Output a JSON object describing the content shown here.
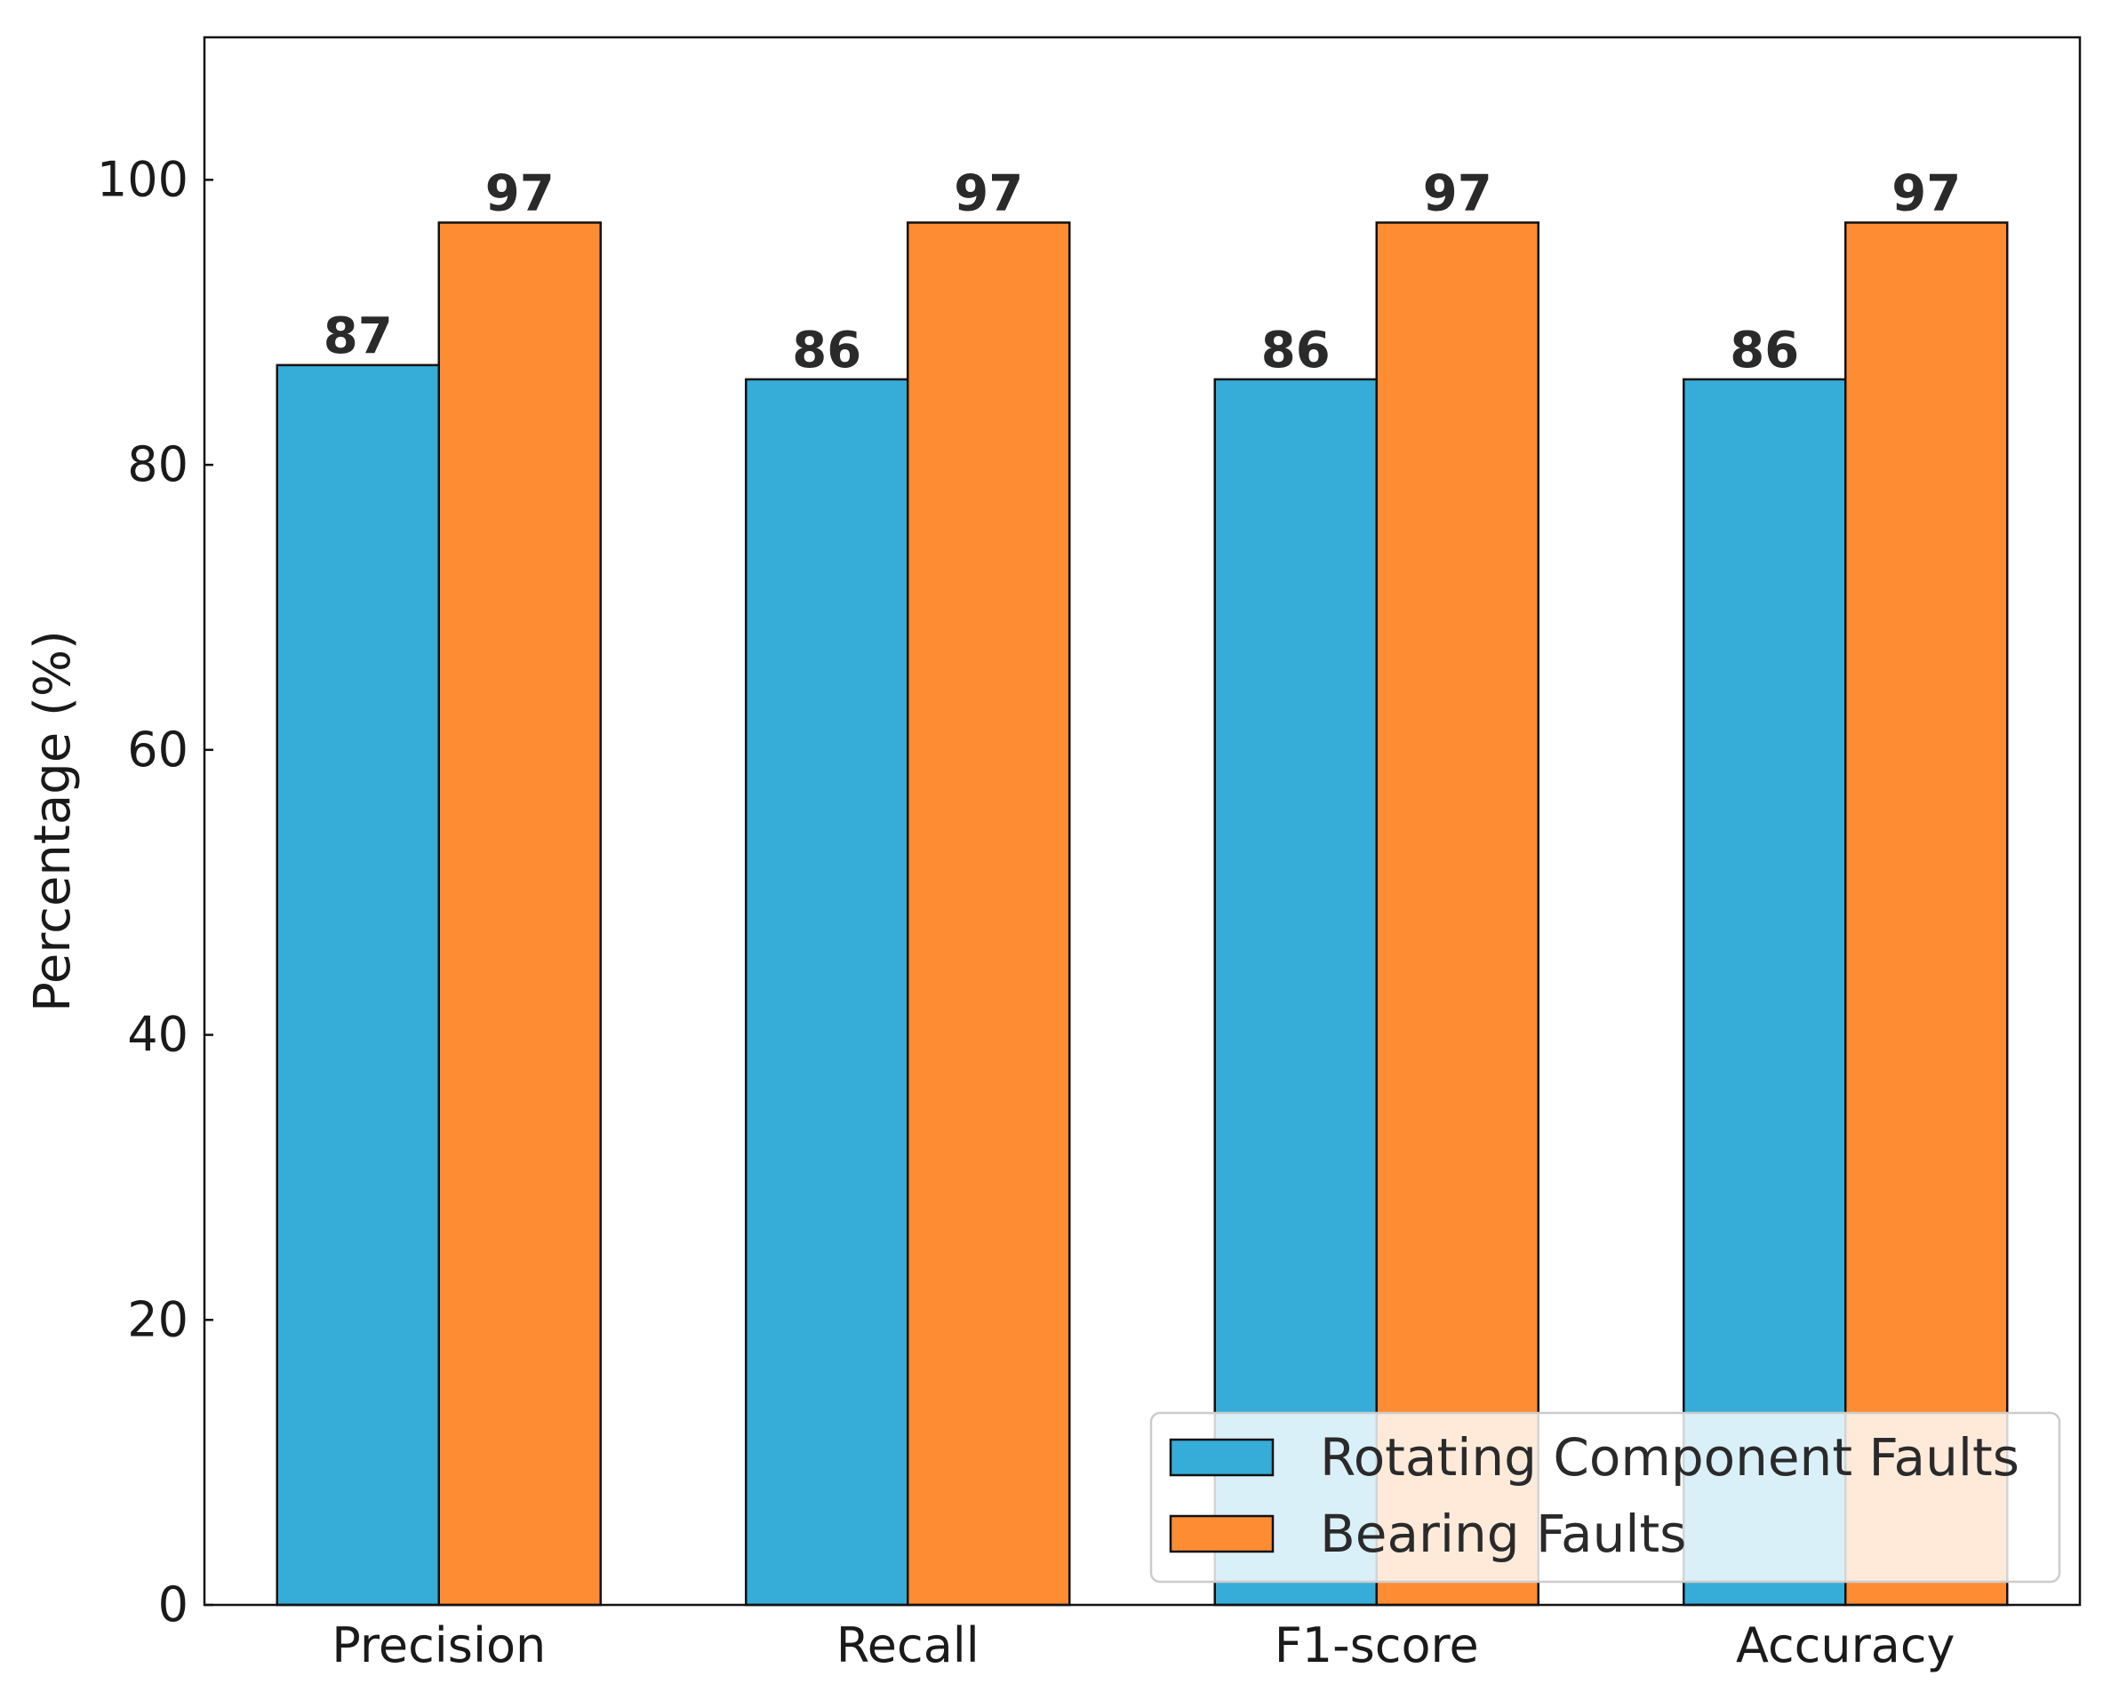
{
  "chart_data": {
    "type": "bar",
    "title": "",
    "xlabel": "",
    "ylabel": "Percentage (%)",
    "categories": [
      "Precision",
      "Recall",
      "F1-score",
      "Accuracy"
    ],
    "series": [
      {
        "name": "Rotating Component Faults",
        "values": [
          87,
          86,
          86,
          86
        ],
        "color": "#36acd8"
      },
      {
        "name": "Bearing Faults",
        "values": [
          97,
          97,
          97,
          97
        ],
        "color": "#fe8c33"
      }
    ],
    "ylim": [
      0,
      110
    ],
    "yticks": [
      0,
      20,
      40,
      60,
      80,
      100
    ],
    "grid": false,
    "legend_position": "lower-right"
  }
}
